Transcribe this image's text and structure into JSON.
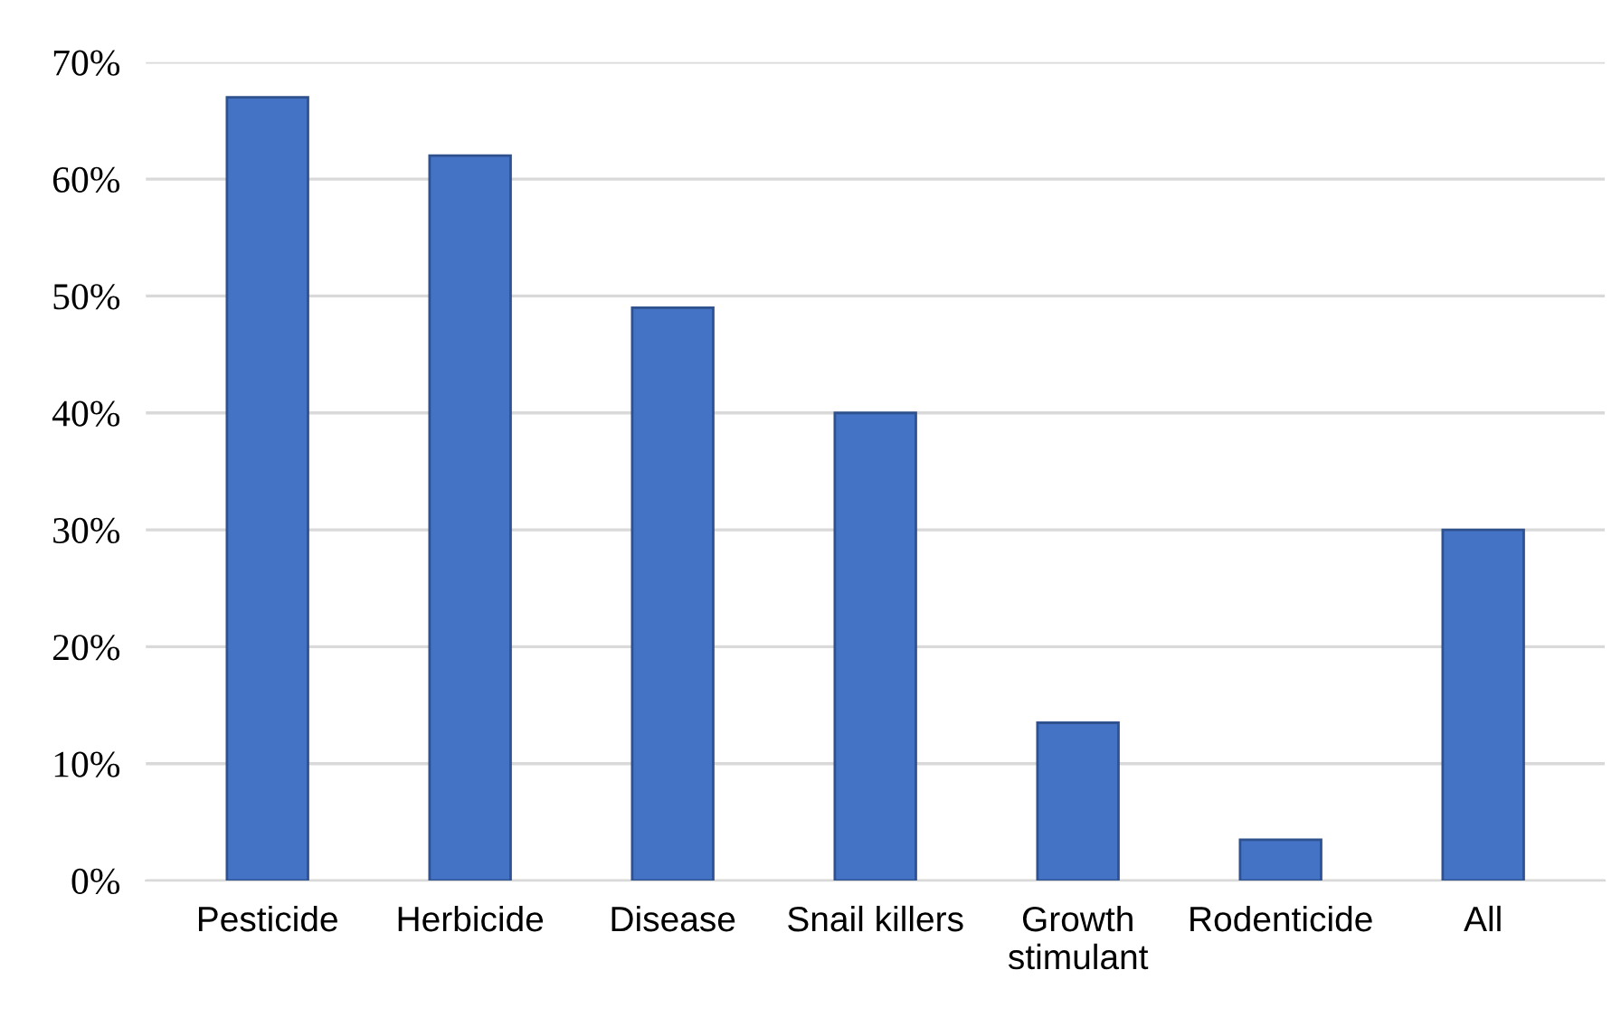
{
  "chart_data": {
    "type": "bar",
    "categories": [
      "Pesticide",
      "Herbicide",
      "Disease",
      "Snail killers",
      "Growth\nstimulant",
      "Rodenticide",
      "All"
    ],
    "values": [
      67,
      62,
      49,
      40,
      13.5,
      3.5,
      30
    ],
    "color": "#4472c4",
    "ylim": [
      0,
      70
    ],
    "yticks": [
      {
        "value": 0,
        "label": "0%"
      },
      {
        "value": 10,
        "label": "10%"
      },
      {
        "value": 20,
        "label": "20%"
      },
      {
        "value": 30,
        "label": "30%"
      },
      {
        "value": 40,
        "label": "40%"
      },
      {
        "value": 50,
        "label": "50%"
      },
      {
        "value": 60,
        "label": "60%"
      },
      {
        "value": 70,
        "label": "70%"
      }
    ],
    "grid": "y"
  }
}
